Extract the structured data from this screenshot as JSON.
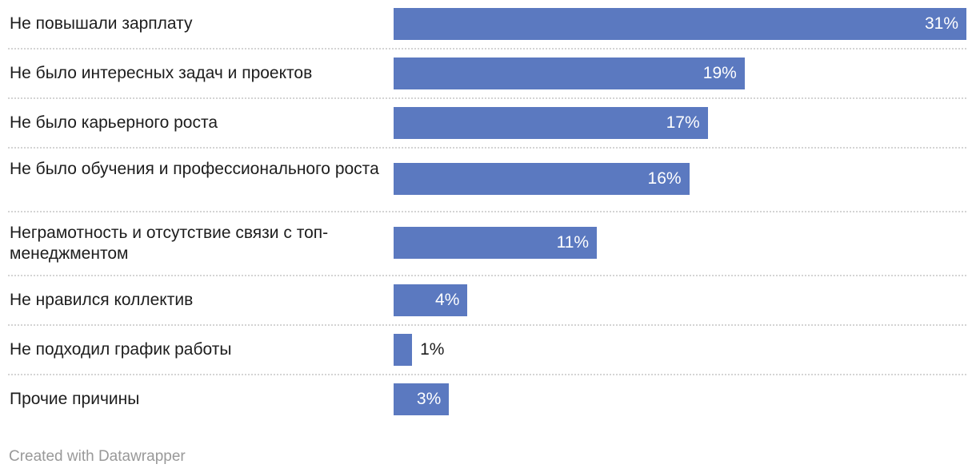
{
  "chart_data": {
    "type": "bar",
    "orientation": "horizontal",
    "categories": [
      "Не повышали зарплату",
      "Не было интересных задач и проектов",
      "Не было карьерного роста",
      "Не было обучения и профессионального роста",
      "Неграмотность и отсутствие связи с топ-менеджментом",
      "Не нравился коллектив",
      "Не подходил график работы",
      "Прочие причины"
    ],
    "values": [
      31,
      19,
      17,
      16,
      11,
      4,
      1,
      3
    ],
    "value_labels": [
      "31%",
      "19%",
      "17%",
      "16%",
      "11%",
      "4%",
      "1%",
      "3%"
    ],
    "unit": "%",
    "xlim": [
      0,
      31
    ],
    "bar_color": "#5b79c0"
  },
  "footer": "Created with Datawrapper"
}
